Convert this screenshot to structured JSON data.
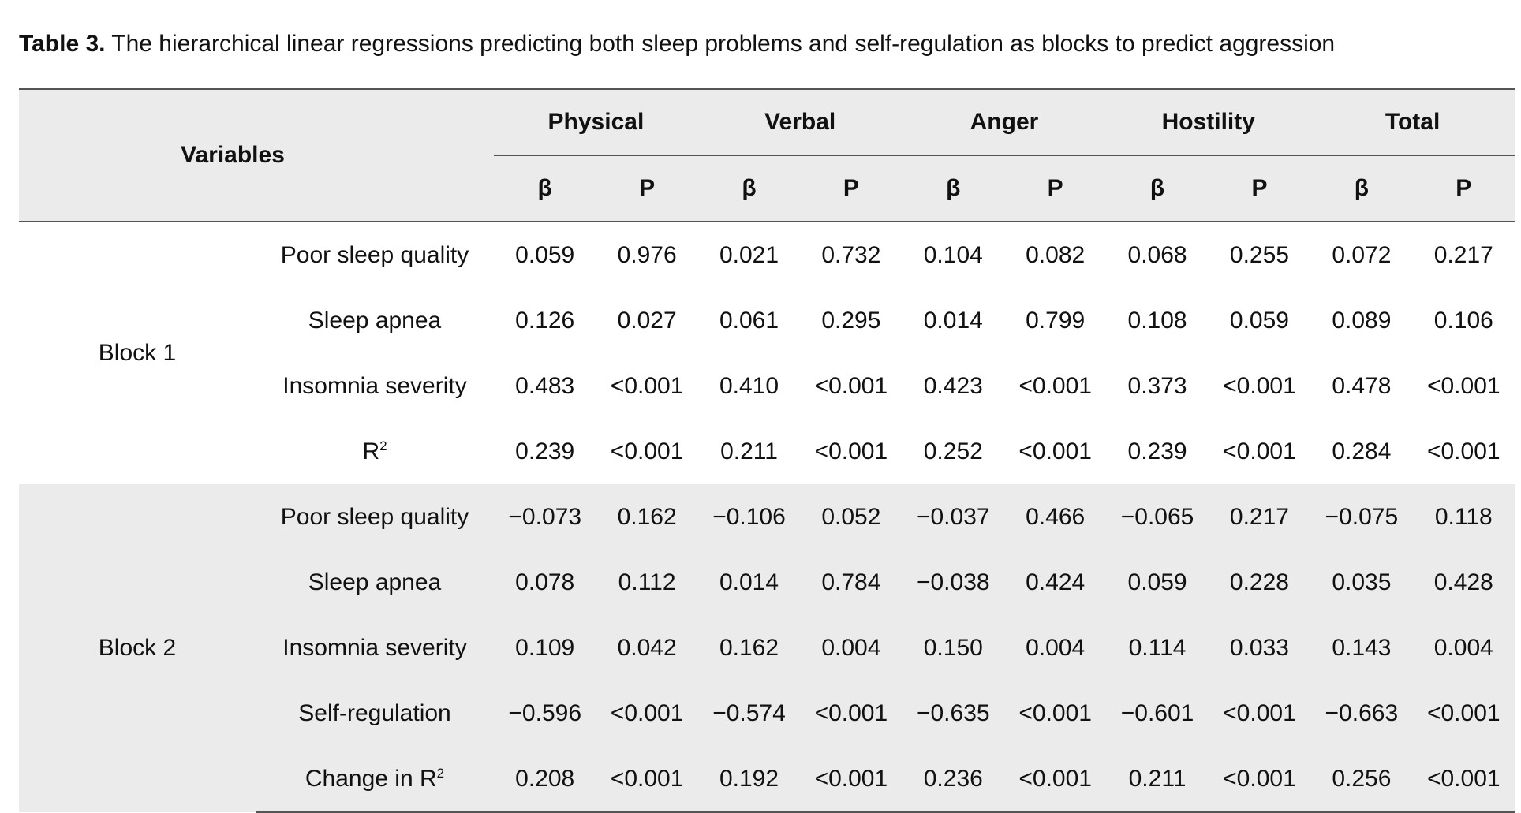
{
  "caption": {
    "label": "Table 3.",
    "text": " The hierarchical linear regressions predicting both sleep problems and self-regulation as blocks to predict aggression"
  },
  "header": {
    "variables": "Variables",
    "groups": [
      "Physical",
      "Verbal",
      "Anger",
      "Hostility",
      "Total"
    ],
    "beta": "β",
    "p": "P"
  },
  "blocks": [
    {
      "label": "Block 1",
      "rows": [
        {
          "variable": "Poor sleep quality",
          "sup": "",
          "values": [
            "0.059",
            "0.976",
            "0.021",
            "0.732",
            "0.104",
            "0.082",
            "0.068",
            "0.255",
            "0.072",
            "0.217"
          ]
        },
        {
          "variable": "Sleep apnea",
          "sup": "",
          "values": [
            "0.126",
            "0.027",
            "0.061",
            "0.295",
            "0.014",
            "0.799",
            "0.108",
            "0.059",
            "0.089",
            "0.106"
          ]
        },
        {
          "variable": "Insomnia severity",
          "sup": "",
          "values": [
            "0.483",
            "<0.001",
            "0.410",
            "<0.001",
            "0.423",
            "<0.001",
            "0.373",
            "<0.001",
            "0.478",
            "<0.001"
          ]
        },
        {
          "variable": "R",
          "sup": "2",
          "values": [
            "0.239",
            "<0.001",
            "0.211",
            "<0.001",
            "0.252",
            "<0.001",
            "0.239",
            "<0.001",
            "0.284",
            "<0.001"
          ]
        }
      ]
    },
    {
      "label": "Block 2",
      "rows": [
        {
          "variable": "Poor sleep quality",
          "sup": "",
          "values": [
            "−0.073",
            "0.162",
            "−0.106",
            "0.052",
            "−0.037",
            "0.466",
            "−0.065",
            "0.217",
            "−0.075",
            "0.118"
          ]
        },
        {
          "variable": "Sleep apnea",
          "sup": "",
          "values": [
            "0.078",
            "0.112",
            "0.014",
            "0.784",
            "−0.038",
            "0.424",
            "0.059",
            "0.228",
            "0.035",
            "0.428"
          ]
        },
        {
          "variable": "Insomnia severity",
          "sup": "",
          "values": [
            "0.109",
            "0.042",
            "0.162",
            "0.004",
            "0.150",
            "0.004",
            "0.114",
            "0.033",
            "0.143",
            "0.004"
          ]
        },
        {
          "variable": "Self-regulation",
          "sup": "",
          "values": [
            "−0.596",
            "<0.001",
            "−0.574",
            "<0.001",
            "−0.635",
            "<0.001",
            "−0.601",
            "<0.001",
            "−0.663",
            "<0.001"
          ]
        },
        {
          "variable": "Change in R",
          "sup": "2",
          "values": [
            "0.208",
            "<0.001",
            "0.192",
            "<0.001",
            "0.236",
            "<0.001",
            "0.211",
            "<0.001",
            "0.256",
            "<0.001"
          ]
        }
      ]
    }
  ]
}
